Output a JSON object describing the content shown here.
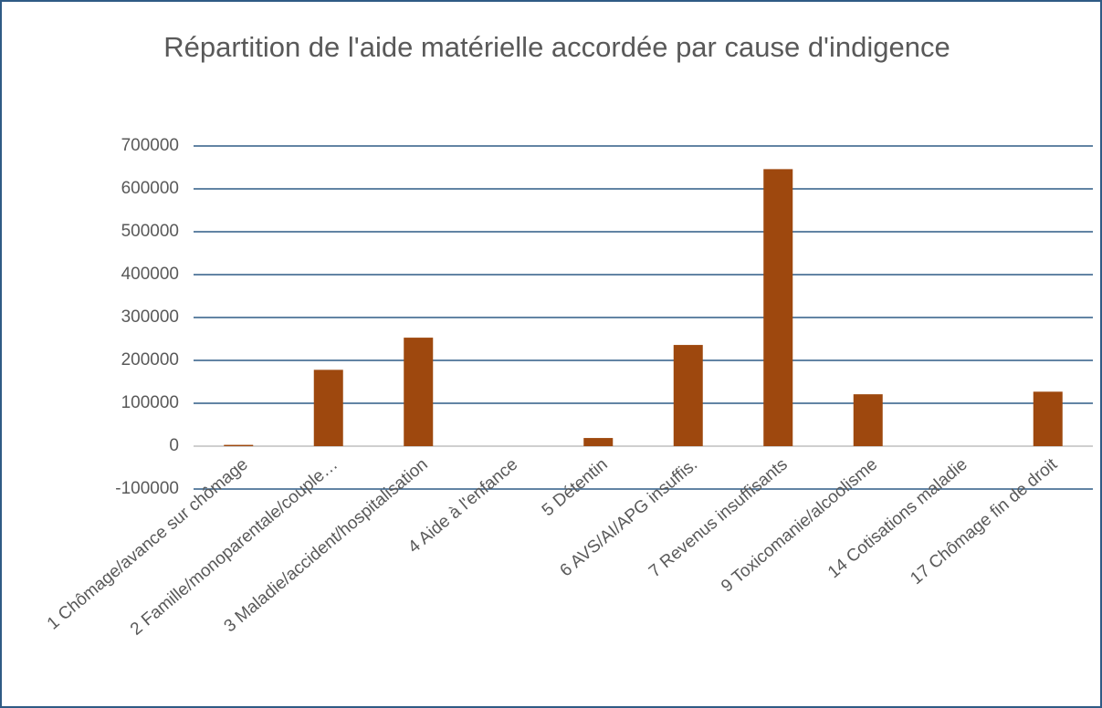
{
  "chart_data": {
    "type": "bar",
    "title": "Répartition de l'aide matérielle accordée par cause d'indigence",
    "categories": [
      "1 Chômage/avance sur chômage",
      "2 Famille/monoparentale/couple…",
      "3 Maladie/accident/hospitalisation",
      "4 Aide à l'enfance",
      "5 Détentin",
      "6 AVS/AI/APG insuffis.",
      "7 Revenus insuffisants",
      "9 Toxicomanie/alcoolisme",
      "14 Cotisations maladie",
      "17 Chômage fin de droit"
    ],
    "values": [
      3000,
      178000,
      253000,
      0,
      19000,
      236000,
      646000,
      121000,
      0,
      127000
    ],
    "color": "#9e480e",
    "ylim": [
      -100000,
      700000
    ],
    "yticks": [
      -100000,
      0,
      100000,
      200000,
      300000,
      400000,
      500000,
      600000,
      700000
    ],
    "grid": true
  }
}
